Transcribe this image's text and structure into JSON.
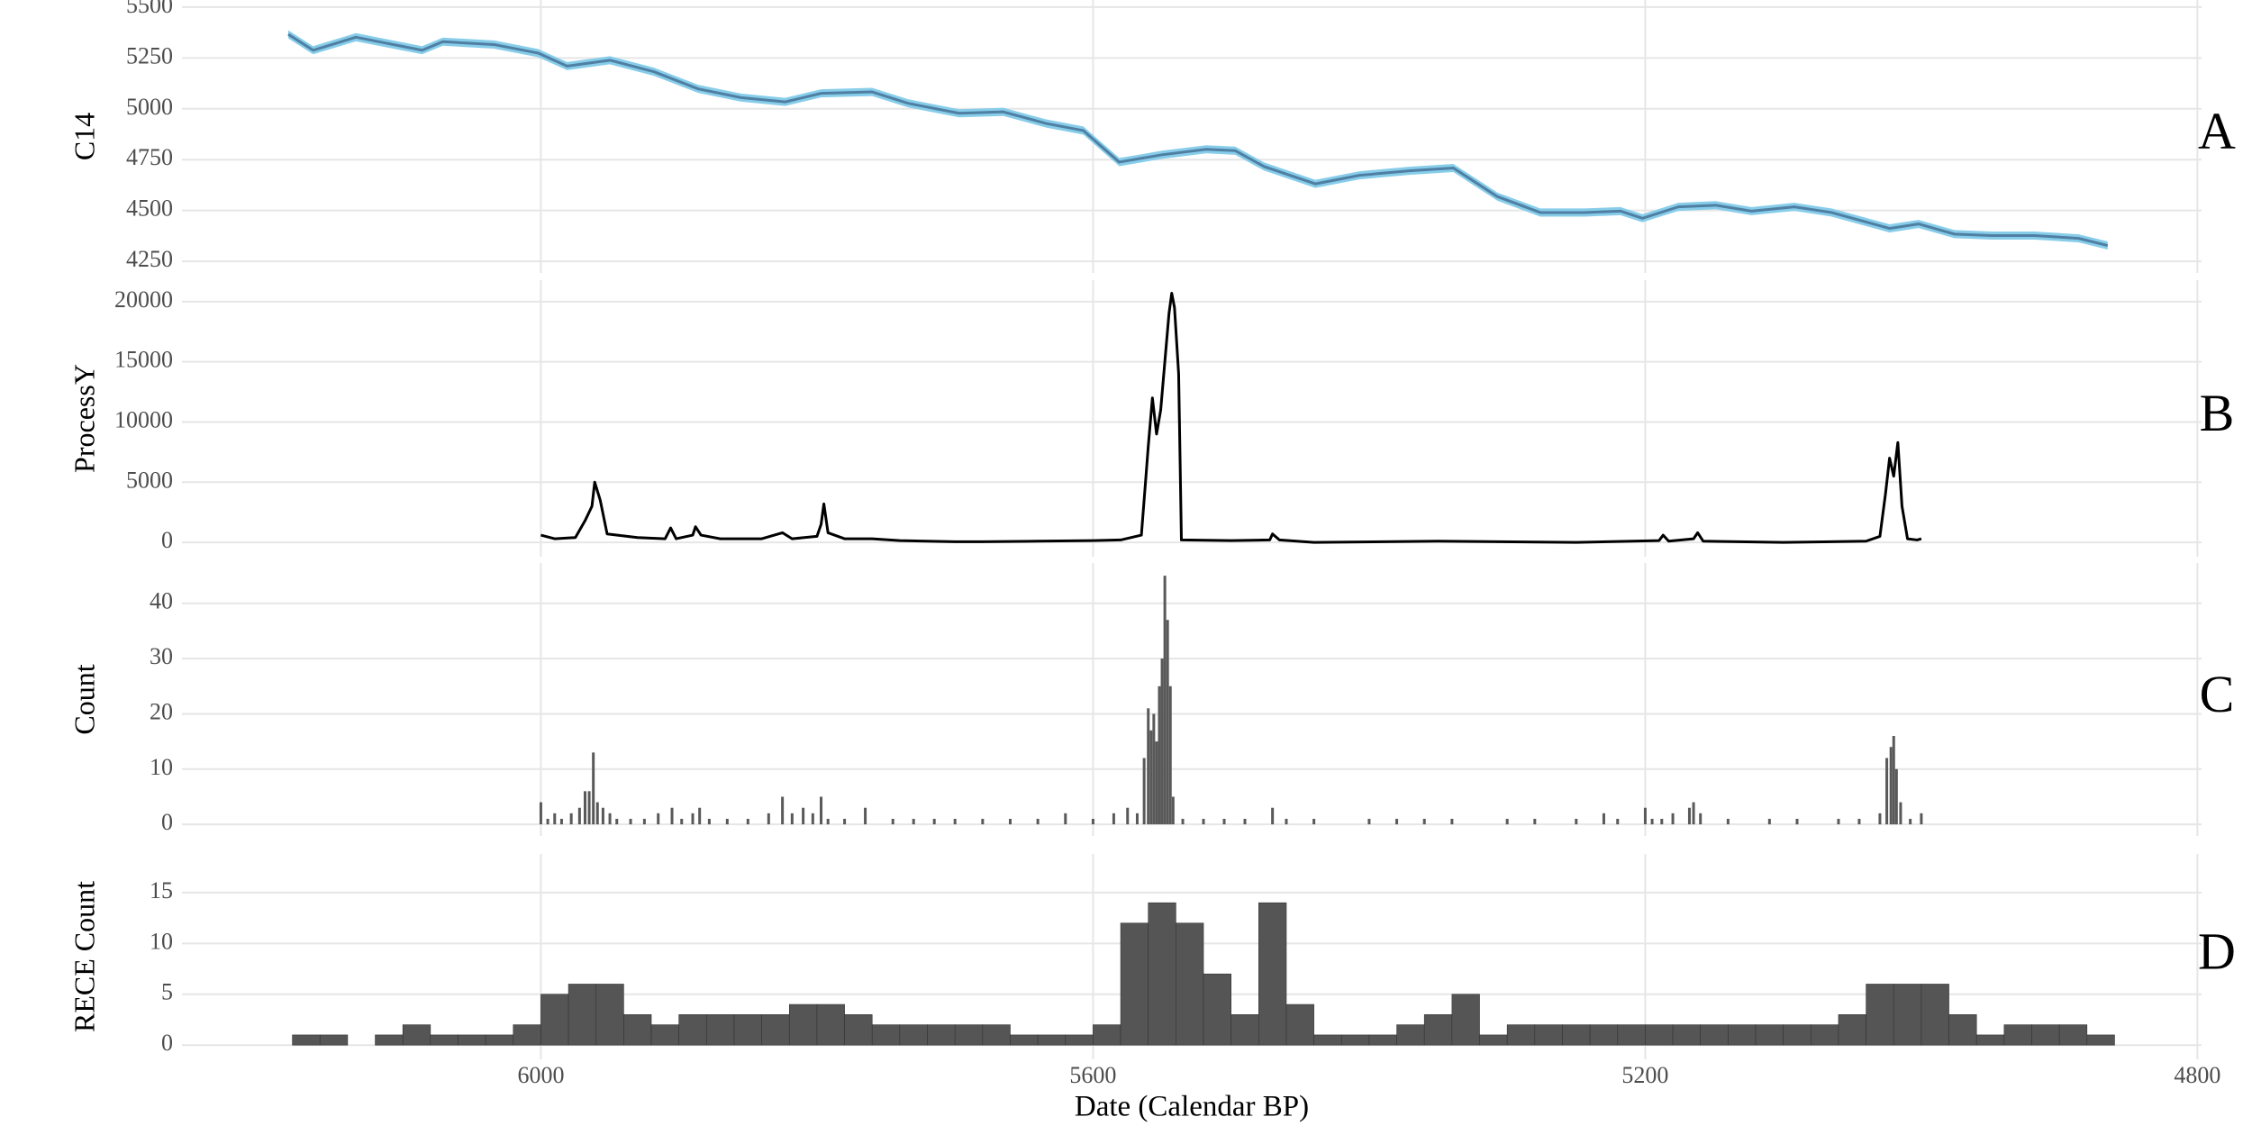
{
  "chart_data": [
    {
      "type": "line",
      "ylabel": "C14",
      "panel_label": "A",
      "x": [
        6183,
        6165,
        6134,
        6086,
        6071,
        6034,
        6002,
        5981,
        5950,
        5918,
        5886,
        5855,
        5823,
        5797,
        5760,
        5734,
        5697,
        5665,
        5634,
        5607,
        5581,
        5550,
        5518,
        5497,
        5476,
        5439,
        5407,
        5371,
        5339,
        5307,
        5276,
        5244,
        5218,
        5202,
        5176,
        5149,
        5123,
        5092,
        5065,
        5023,
        5002,
        4976,
        4949,
        4918,
        4886,
        4865
      ],
      "series": [
        {
          "color": "#4f7fa3",
          "band_color": "#87cdea",
          "values": [
            5366,
            5288,
            5352,
            5288,
            5330,
            5316,
            5274,
            5210,
            5239,
            5182,
            5098,
            5055,
            5034,
            5076,
            5083,
            5027,
            4978,
            4985,
            4928,
            4893,
            4738,
            4774,
            4801,
            4794,
            4716,
            4631,
            4673,
            4695,
            4709,
            4568,
            4490,
            4490,
            4497,
            4462,
            4518,
            4526,
            4497,
            4518,
            4490,
            4412,
            4434,
            4384,
            4377,
            4377,
            4363,
            4328
          ],
          "errors": [
            20,
            20,
            20,
            20,
            20,
            20,
            20,
            20,
            20,
            20,
            20,
            20,
            20,
            20,
            20,
            20,
            20,
            20,
            20,
            20,
            20,
            20,
            20,
            20,
            20,
            20,
            20,
            20,
            20,
            20,
            20,
            20,
            20,
            20,
            20,
            20,
            20,
            20,
            20,
            20,
            20,
            20,
            20,
            20,
            20,
            20
          ]
        }
      ],
      "xlim": [
        6260,
        4797
      ],
      "xticks": [
        6000,
        5600,
        5200,
        4800
      ],
      "ylim": [
        4193,
        5535
      ],
      "yticks": [
        4250,
        4500,
        4750,
        5000,
        5250,
        5500
      ],
      "grid": true
    },
    {
      "type": "line",
      "ylabel": "ProcessY",
      "panel_label": "B",
      "x": [
        6000,
        5990,
        5975,
        5968,
        5963,
        5961,
        5957,
        5952,
        5930,
        5910,
        5906,
        5902,
        5890,
        5888,
        5884,
        5870,
        5840,
        5825,
        5818,
        5800,
        5797,
        5795,
        5792,
        5780,
        5760,
        5740,
        5700,
        5680,
        5640,
        5600,
        5580,
        5565,
        5562,
        5560,
        5557,
        5554,
        5551,
        5548,
        5545,
        5543,
        5541,
        5538,
        5536,
        5500,
        5472,
        5470,
        5465,
        5440,
        5350,
        5250,
        5190,
        5187,
        5183,
        5165,
        5162,
        5158,
        5100,
        5040,
        5030,
        5026,
        5023,
        5020,
        5017,
        5014,
        5010,
        5003,
        5000
      ],
      "series": [
        {
          "color": "#000000",
          "values": [
            600,
            300,
            400,
            1800,
            3000,
            5000,
            3500,
            700,
            400,
            300,
            1200,
            300,
            600,
            1300,
            600,
            300,
            300,
            800,
            300,
            500,
            1500,
            3200,
            800,
            300,
            300,
            150,
            50,
            50,
            100,
            150,
            200,
            600,
            5000,
            8000,
            12000,
            9000,
            11000,
            15000,
            19000,
            20700,
            19500,
            14000,
            200,
            150,
            200,
            700,
            200,
            0,
            100,
            0,
            150,
            600,
            100,
            300,
            800,
            100,
            0,
            100,
            500,
            4000,
            7000,
            5500,
            8300,
            3000,
            300,
            200,
            300
          ]
        }
      ],
      "xlim": [
        6260,
        4797
      ],
      "xticks": [
        6000,
        5600,
        5200,
        4800
      ],
      "ylim": [
        -1190,
        21786
      ],
      "yticks": [
        0,
        5000,
        10000,
        15000,
        20000
      ],
      "grid": true
    },
    {
      "type": "bar",
      "ylabel": "Count",
      "panel_label": "C",
      "color": "#595959",
      "x": [
        6000,
        5995,
        5990,
        5985,
        5978,
        5972,
        5968,
        5965,
        5962,
        5959,
        5955,
        5950,
        5945,
        5935,
        5925,
        5915,
        5905,
        5898,
        5890,
        5885,
        5878,
        5865,
        5850,
        5835,
        5825,
        5818,
        5810,
        5803,
        5797,
        5792,
        5780,
        5765,
        5745,
        5730,
        5715,
        5700,
        5680,
        5660,
        5640,
        5620,
        5600,
        5585,
        5575,
        5568,
        5563,
        5560,
        5558,
        5556,
        5554,
        5552,
        5550,
        5548,
        5546,
        5544,
        5542,
        5535,
        5520,
        5505,
        5490,
        5470,
        5460,
        5440,
        5400,
        5380,
        5360,
        5340,
        5300,
        5280,
        5250,
        5230,
        5220,
        5200,
        5195,
        5188,
        5180,
        5168,
        5165,
        5160,
        5140,
        5110,
        5090,
        5060,
        5045,
        5030,
        5025,
        5022,
        5020,
        5018,
        5015,
        5008,
        5000
      ],
      "values": [
        4,
        1,
        2,
        1,
        2,
        3,
        6,
        6,
        13,
        4,
        3,
        2,
        1,
        1,
        1,
        2,
        3,
        1,
        2,
        3,
        1,
        1,
        1,
        2,
        5,
        2,
        3,
        2,
        5,
        1,
        1,
        3,
        1,
        1,
        1,
        1,
        1,
        1,
        1,
        2,
        1,
        2,
        3,
        2,
        12,
        21,
        17,
        20,
        15,
        25,
        30,
        45,
        37,
        25,
        5,
        1,
        1,
        1,
        1,
        3,
        1,
        1,
        1,
        1,
        1,
        1,
        1,
        1,
        1,
        2,
        1,
        3,
        1,
        1,
        2,
        3,
        4,
        2,
        1,
        1,
        1,
        1,
        1,
        2,
        12,
        14,
        16,
        10,
        4,
        1,
        2
      ],
      "xlim": [
        6260,
        4797
      ],
      "xticks": [
        6000,
        5600,
        5200,
        4800
      ],
      "ylim": [
        -2.1,
        47.3
      ],
      "yticks": [
        0,
        10,
        20,
        30,
        40
      ],
      "grid": true
    },
    {
      "type": "histogram",
      "ylabel": "RECE Count",
      "panel_label": "D",
      "xlabel": "Date (Calendar BP)",
      "color": "#555555",
      "bins": [
        6180,
        6160,
        6140,
        6120,
        6100,
        6080,
        6060,
        6040,
        6020,
        6000,
        5980,
        5960,
        5940,
        5920,
        5900,
        5880,
        5860,
        5840,
        5820,
        5800,
        5780,
        5760,
        5740,
        5720,
        5700,
        5680,
        5660,
        5640,
        5620,
        5600,
        5580,
        5560,
        5540,
        5520,
        5500,
        5480,
        5460,
        5440,
        5420,
        5400,
        5380,
        5360,
        5340,
        5320,
        5300,
        5280,
        5260,
        5240,
        5220,
        5200,
        5180,
        5160,
        5140,
        5120,
        5100,
        5080,
        5060,
        5040,
        5020,
        5000,
        4980,
        4960,
        4940,
        4920,
        4900,
        4880,
        4860
      ],
      "values": [
        1,
        1,
        0,
        1,
        2,
        1,
        1,
        1,
        2,
        5,
        6,
        6,
        3,
        2,
        3,
        3,
        3,
        3,
        4,
        4,
        3,
        2,
        2,
        2,
        2,
        2,
        1,
        1,
        1,
        2,
        12,
        14,
        12,
        7,
        3,
        14,
        4,
        1,
        1,
        1,
        2,
        3,
        5,
        1,
        2,
        2,
        2,
        2,
        2,
        2,
        2,
        2,
        2,
        2,
        2,
        2,
        3,
        6,
        6,
        6,
        3,
        1,
        2,
        2,
        2,
        1
      ],
      "xlim": [
        6260,
        4797
      ],
      "xticks": [
        6000,
        5600,
        5200,
        4800
      ],
      "ylim": [
        -1.4,
        18.8
      ],
      "yticks": [
        0,
        5,
        10,
        15
      ],
      "grid": true
    }
  ]
}
